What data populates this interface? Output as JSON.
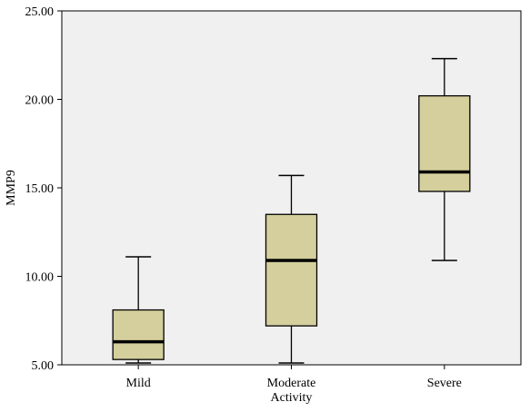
{
  "chart_data": {
    "type": "box",
    "ylabel": "MMP9",
    "xlabel": "",
    "ylim": [
      5,
      25
    ],
    "y_ticks": [
      {
        "value": 5,
        "label": "5.00"
      },
      {
        "value": 10,
        "label": "10.00"
      },
      {
        "value": 15,
        "label": "15.00"
      },
      {
        "value": 20,
        "label": "20.00"
      },
      {
        "value": 25,
        "label": "25.00"
      }
    ],
    "categories": [
      {
        "label_lines": [
          "Mild"
        ],
        "min": 5.1,
        "q1": 5.3,
        "median": 6.3,
        "q3": 8.1,
        "max": 11.1
      },
      {
        "label_lines": [
          "Moderate",
          "Activity"
        ],
        "min": 5.1,
        "q1": 7.2,
        "median": 10.9,
        "q3": 13.5,
        "max": 15.7
      },
      {
        "label_lines": [
          "Severe"
        ],
        "min": 10.9,
        "q1": 14.8,
        "median": 15.9,
        "q3": 20.2,
        "max": 22.3
      }
    ],
    "grid": false,
    "colors": {
      "plot_background": "#f0f0f0",
      "box_fill": "#d4cf9c",
      "stroke": "#000000"
    }
  }
}
